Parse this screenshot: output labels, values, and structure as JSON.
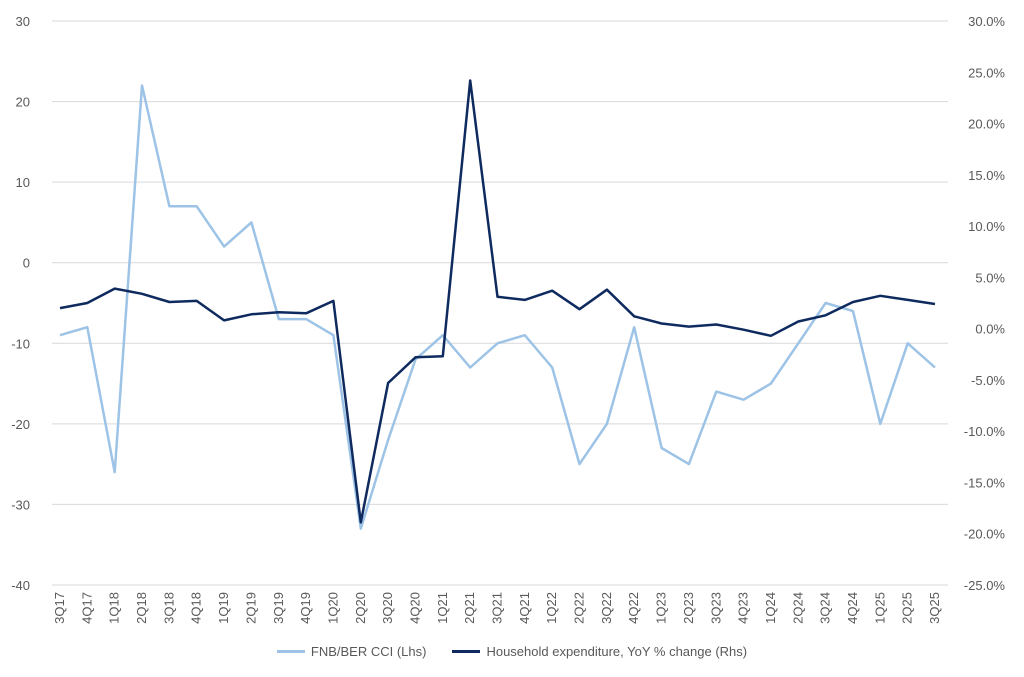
{
  "chart_data": {
    "type": "line",
    "title": "",
    "categories": [
      "3Q17",
      "4Q17",
      "1Q18",
      "2Q18",
      "3Q18",
      "4Q18",
      "1Q19",
      "2Q19",
      "3Q19",
      "4Q19",
      "1Q20",
      "2Q20",
      "3Q20",
      "4Q20",
      "1Q21",
      "2Q21",
      "3Q21",
      "4Q21",
      "1Q22",
      "2Q22",
      "3Q22",
      "4Q22",
      "1Q23",
      "2Q23",
      "3Q23",
      "4Q23",
      "1Q24",
      "2Q24",
      "3Q24",
      "4Q24",
      "1Q25",
      "2Q25",
      "3Q25"
    ],
    "y_left": {
      "range": [
        -40,
        30
      ],
      "ticks": [
        "-40",
        "-30",
        "-20",
        "-10",
        "0",
        "10",
        "20",
        "30"
      ],
      "tick_values": [
        -40,
        -30,
        -20,
        -10,
        0,
        10,
        20,
        30
      ]
    },
    "y_right": {
      "range": [
        -25,
        30
      ],
      "ticks": [
        "-25.0%",
        "-20.0%",
        "-15.0%",
        "-10.0%",
        "-5.0%",
        "0.0%",
        "5.0%",
        "10.0%",
        "15.0%",
        "20.0%",
        "25.0%",
        "30.0%"
      ],
      "tick_values": [
        -25,
        -20,
        -15,
        -10,
        -5,
        0,
        5,
        10,
        15,
        20,
        25,
        30
      ]
    },
    "grid": true,
    "legend_position": "bottom",
    "series": [
      {
        "name": "FNB/BER CCI (Lhs)",
        "axis": "left",
        "color": "#9DC3E6",
        "values": [
          -9,
          -8,
          -26,
          22,
          7,
          7,
          2,
          5,
          -7,
          -7,
          -9,
          -33,
          -22,
          -12,
          -9,
          -13,
          -10,
          -9,
          -13,
          -25,
          -20,
          -8,
          -23,
          -25,
          -16,
          -17,
          -15,
          -10,
          -5,
          -6,
          -20,
          -10,
          -13
        ]
      },
      {
        "name": "Household expenditure, YoY % change (Rhs)",
        "axis": "right",
        "color": "#0E2A5E",
        "values": [
          2.0,
          2.5,
          3.9,
          3.4,
          2.6,
          2.7,
          0.8,
          1.4,
          1.6,
          1.5,
          2.7,
          -18.9,
          -5.3,
          -2.8,
          -2.7,
          24.2,
          3.1,
          2.8,
          3.7,
          1.9,
          3.8,
          1.2,
          0.5,
          0.2,
          0.4,
          -0.1,
          -0.7,
          0.7,
          1.3,
          2.6,
          3.2,
          2.8,
          2.4
        ]
      }
    ]
  }
}
